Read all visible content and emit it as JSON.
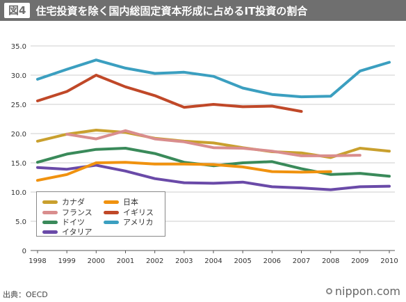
{
  "header": {
    "badge": "図4",
    "title": "住宅投資を除く国内総固定資本形成に占めるIT投資の割合"
  },
  "footer": {
    "source": "出典：OECD",
    "brand": "nippon.com"
  },
  "chart_data": {
    "type": "line",
    "title": "住宅投資を除く国内総固定資本形成に占めるIT投資の割合",
    "xlabel": "",
    "ylabel": "",
    "x": [
      "1998",
      "1999",
      "2000",
      "2001",
      "2002",
      "2003",
      "2004",
      "2005",
      "2006",
      "2007",
      "2008",
      "2009",
      "2010"
    ],
    "ylim": [
      0,
      35
    ],
    "yticks": [
      "0",
      "5.0",
      "10.0",
      "15.0",
      "20.0",
      "25.0",
      "30.0",
      "35.0"
    ],
    "grid": true,
    "legend_position": "bottom-left",
    "series": [
      {
        "name": "カナダ",
        "color": "#c9a02e",
        "values": [
          18.7,
          19.9,
          20.6,
          20.2,
          19.2,
          18.7,
          18.4,
          17.6,
          16.9,
          16.7,
          15.9,
          17.5,
          17.0
        ]
      },
      {
        "name": "フランス",
        "color": "#d98d8d",
        "values": [
          null,
          19.9,
          19.1,
          20.5,
          19.1,
          18.6,
          17.6,
          17.5,
          17.0,
          16.2,
          16.2,
          16.3,
          null
        ]
      },
      {
        "name": "ドイツ",
        "color": "#3a8a5a",
        "values": [
          15.1,
          16.5,
          17.3,
          17.5,
          16.6,
          15.1,
          14.5,
          15.0,
          15.2,
          14.0,
          13.0,
          13.2,
          12.7
        ]
      },
      {
        "name": "イタリア",
        "color": "#6a4aa8",
        "values": [
          14.2,
          13.9,
          14.6,
          13.6,
          12.3,
          11.6,
          11.5,
          11.7,
          10.9,
          10.7,
          10.4,
          10.9,
          11.0
        ]
      },
      {
        "name": "日本",
        "color": "#f0920f",
        "values": [
          12.0,
          13.0,
          15.0,
          15.1,
          14.8,
          14.8,
          14.7,
          14.3,
          13.5,
          13.4,
          13.5,
          null,
          null
        ]
      },
      {
        "name": "イギリス",
        "color": "#c04828",
        "values": [
          25.6,
          27.2,
          30.0,
          28.0,
          26.5,
          24.5,
          25.0,
          24.6,
          24.7,
          23.8,
          null,
          null,
          null
        ]
      },
      {
        "name": "アメリカ",
        "color": "#3b9fc0",
        "values": [
          29.3,
          31.0,
          32.6,
          31.2,
          30.3,
          30.5,
          29.8,
          27.8,
          26.7,
          26.3,
          26.4,
          30.7,
          32.2
        ]
      }
    ]
  }
}
